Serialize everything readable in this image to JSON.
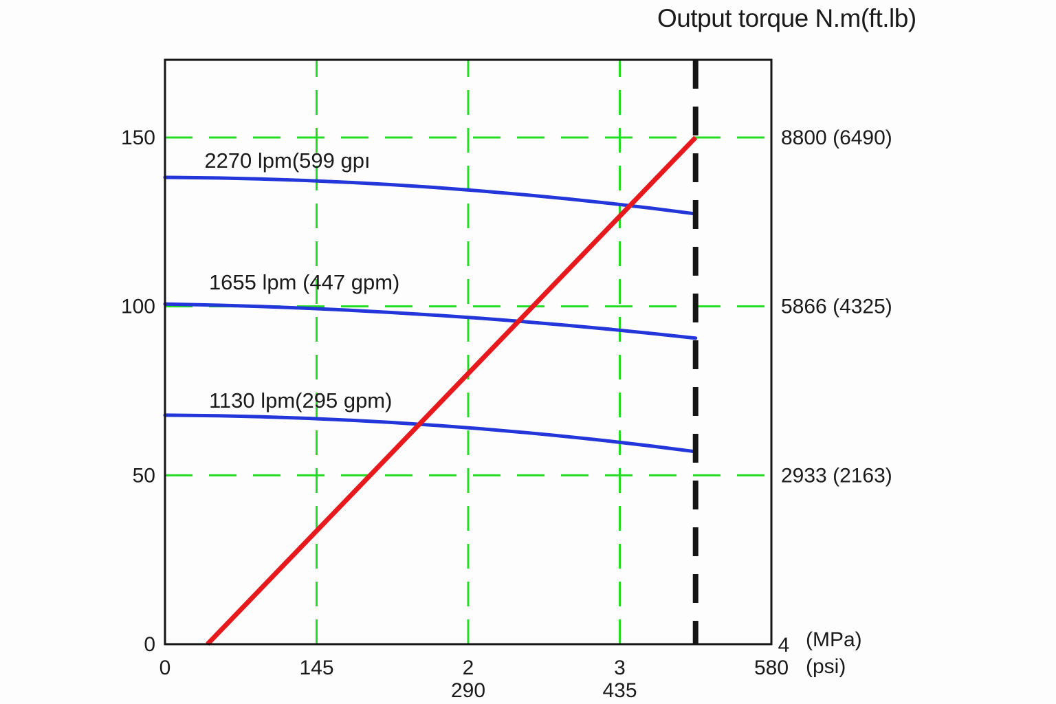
{
  "colors": {
    "background": "#fdfdfd",
    "grid_green": "#22dd22",
    "curve_blue": "#2236d9",
    "torque_red": "#e7191d",
    "axis_black": "#151515"
  },
  "chart_data": {
    "type": "line",
    "title": "Output torque N.m(ft.lb)",
    "x_axis": {
      "unit_labels": [
        "(MPa)",
        "(psi)"
      ],
      "range_mpa": [
        0,
        4
      ],
      "gridline_mpa": [
        1,
        2,
        3
      ],
      "tick_labels": [
        {
          "mpa": 0,
          "row": "B",
          "text": "0"
        },
        {
          "mpa": 1,
          "row": "B",
          "text": "145"
        },
        {
          "mpa": 2,
          "row": "B",
          "text": "2"
        },
        {
          "mpa": 2,
          "row": "C",
          "text": "290"
        },
        {
          "mpa": 3,
          "row": "B",
          "text": "3"
        },
        {
          "mpa": 3,
          "row": "C",
          "text": "435"
        },
        {
          "mpa": 4,
          "row": "A",
          "text": "4"
        },
        {
          "mpa": 4,
          "row": "B",
          "text": "580"
        }
      ]
    },
    "y_axis_left": {
      "range": [
        0,
        173
      ],
      "tick_values": [
        0,
        50,
        100,
        150
      ],
      "gridline_values": [
        50,
        100,
        150
      ]
    },
    "y_axis_right": {
      "labels": [
        {
          "value": 150,
          "text": "8800 (6490)"
        },
        {
          "value": 100,
          "text": "5866 (4325)"
        },
        {
          "value": 50,
          "text": "2933 (2163)"
        }
      ]
    },
    "pressure_limit_line_mpa": 3.5,
    "torque_line": {
      "points": [
        [
          0.28,
          0
        ],
        [
          3.5,
          150
        ]
      ]
    },
    "series": [
      {
        "name": "2270 lpm(599 gpı",
        "label_anchor": {
          "mpa": 0.26,
          "value": 141
        },
        "points": [
          [
            0,
            138.2
          ],
          [
            1.75,
            135.3
          ],
          [
            3.5,
            127.4
          ]
        ]
      },
      {
        "name": "1655 lpm (447 gpm)",
        "label_anchor": {
          "mpa": 0.29,
          "value": 105
        },
        "points": [
          [
            0,
            100.7
          ],
          [
            1.75,
            97.5
          ],
          [
            3.5,
            90.6
          ]
        ]
      },
      {
        "name": "1130 lpm(295 gpm)",
        "label_anchor": {
          "mpa": 0.29,
          "value": 70
        },
        "points": [
          [
            0,
            67.8
          ],
          [
            1.75,
            64.9
          ],
          [
            3.5,
            57.0
          ]
        ]
      }
    ]
  }
}
